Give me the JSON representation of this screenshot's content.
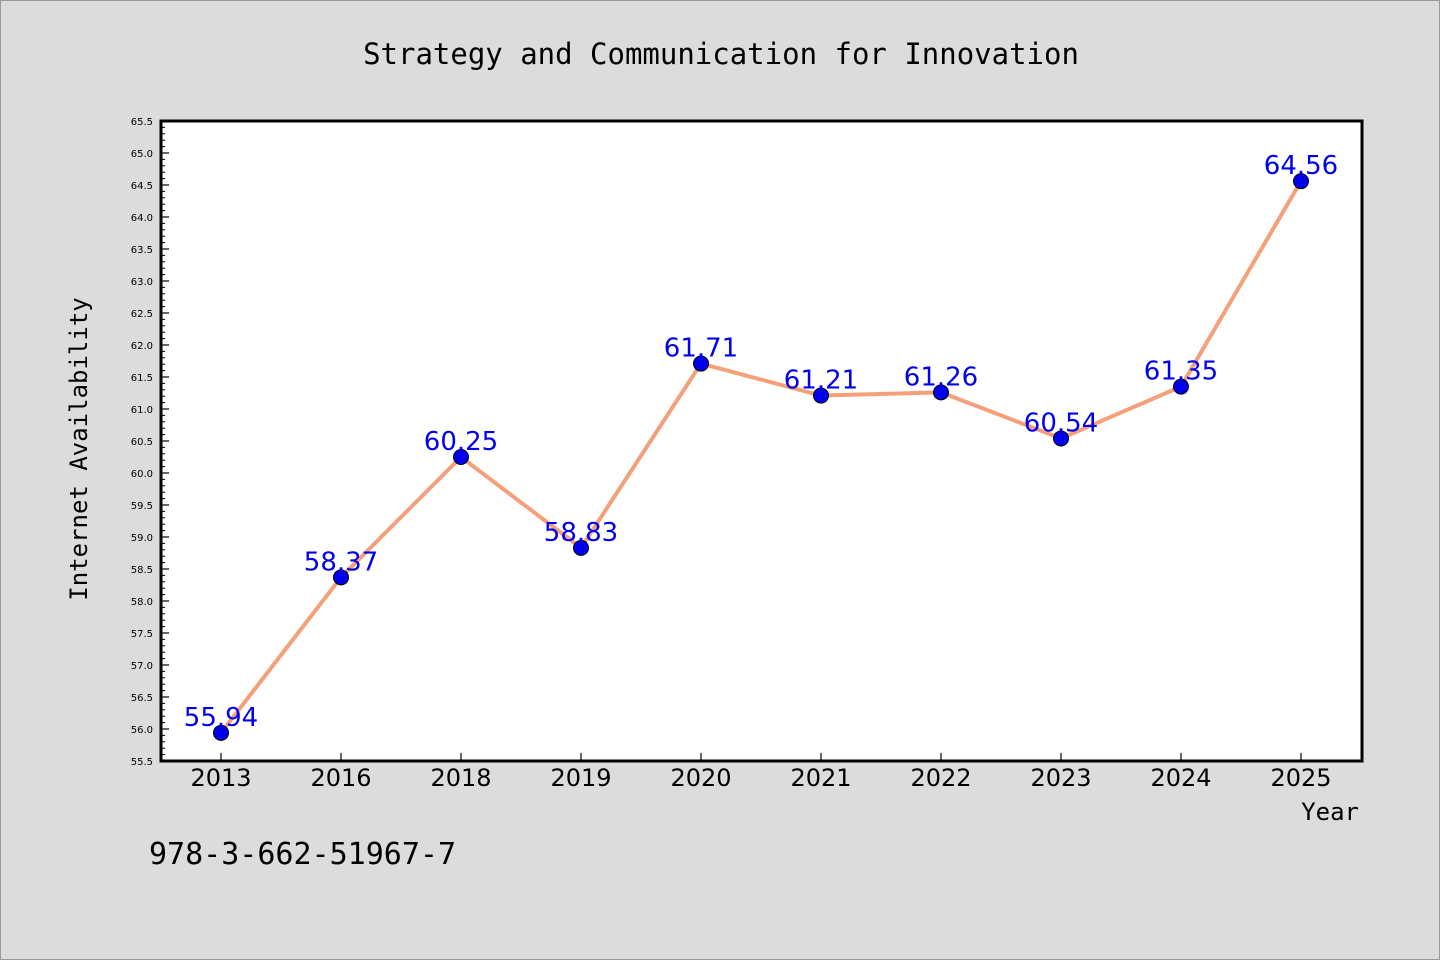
{
  "chart_data": {
    "type": "line",
    "title": "Strategy and Communication for Innovation",
    "xlabel": "Year",
    "ylabel": "Internet Availability",
    "categories": [
      "2013",
      "2016",
      "2018",
      "2019",
      "2020",
      "2021",
      "2022",
      "2023",
      "2024",
      "2025"
    ],
    "values": [
      55.94,
      58.37,
      60.25,
      58.83,
      61.71,
      61.21,
      61.26,
      60.54,
      61.35,
      64.56
    ],
    "data_labels": [
      "55.94",
      "58.37",
      "60.25",
      "58.83",
      "61.71",
      "61.21",
      "61.26",
      "60.54",
      "61.35",
      "64.56"
    ],
    "ylim": [
      55.5,
      65.5
    ],
    "ytick_step": 0.5,
    "grid": false,
    "line_color": "#f4a07a",
    "marker_color": "#0000ee",
    "label_color": "#0000ee"
  },
  "footer_text": "978-3-662-51967-7"
}
